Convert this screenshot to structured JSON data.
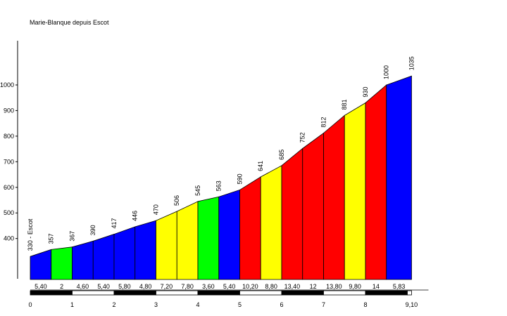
{
  "chart_data": {
    "type": "area",
    "title": "Marie-Blanque depuis Escot",
    "xlabel": "",
    "ylabel": "",
    "xlim": [
      0,
      9.1
    ],
    "ylim": [
      240,
      1100
    ],
    "x_ticks": [
      "0",
      "1",
      "2",
      "3",
      "4",
      "5",
      "6",
      "7",
      "8",
      "9,10"
    ],
    "y_ticks": [
      "400",
      "500",
      "600",
      "700",
      "800",
      "900",
      "1000"
    ],
    "start_label": "330 - Escot",
    "points": [
      {
        "x": 0,
        "alt": 330,
        "label": "330 - Escot"
      },
      {
        "x": 0.5,
        "alt": 357,
        "label": "357"
      },
      {
        "x": 1.0,
        "alt": 367,
        "label": "367"
      },
      {
        "x": 1.5,
        "alt": 390,
        "label": "390"
      },
      {
        "x": 2.0,
        "alt": 417,
        "label": "417"
      },
      {
        "x": 2.5,
        "alt": 446,
        "label": "446"
      },
      {
        "x": 3.0,
        "alt": 470,
        "label": "470"
      },
      {
        "x": 3.5,
        "alt": 506,
        "label": "506"
      },
      {
        "x": 4.0,
        "alt": 545,
        "label": "545"
      },
      {
        "x": 4.5,
        "alt": 563,
        "label": "563"
      },
      {
        "x": 5.0,
        "alt": 590,
        "label": "590"
      },
      {
        "x": 5.5,
        "alt": 641,
        "label": "641"
      },
      {
        "x": 6.0,
        "alt": 685,
        "label": "685"
      },
      {
        "x": 6.5,
        "alt": 752,
        "label": "752"
      },
      {
        "x": 7.0,
        "alt": 812,
        "label": "812"
      },
      {
        "x": 7.5,
        "alt": 881,
        "label": "881"
      },
      {
        "x": 8.0,
        "alt": 930,
        "label": "930"
      },
      {
        "x": 8.5,
        "alt": 1000,
        "label": "1000"
      },
      {
        "x": 9.1,
        "alt": 1035,
        "label": "1035"
      }
    ],
    "segments": [
      {
        "gradient": "5,40",
        "color": "#0000ff"
      },
      {
        "gradient": "2",
        "color": "#00ff00"
      },
      {
        "gradient": "4,60",
        "color": "#0000ff"
      },
      {
        "gradient": "5,40",
        "color": "#0000ff"
      },
      {
        "gradient": "5,80",
        "color": "#0000ff"
      },
      {
        "gradient": "4,80",
        "color": "#0000ff"
      },
      {
        "gradient": "7,20",
        "color": "#ffff00"
      },
      {
        "gradient": "7,80",
        "color": "#ffff00"
      },
      {
        "gradient": "3,60",
        "color": "#00ff00"
      },
      {
        "gradient": "5,40",
        "color": "#0000ff"
      },
      {
        "gradient": "10,20",
        "color": "#ff0000"
      },
      {
        "gradient": "8,80",
        "color": "#ffff00"
      },
      {
        "gradient": "13,40",
        "color": "#ff0000"
      },
      {
        "gradient": "12",
        "color": "#ff0000"
      },
      {
        "gradient": "13,80",
        "color": "#ff0000"
      },
      {
        "gradient": "9,80",
        "color": "#ffff00"
      },
      {
        "gradient": "14",
        "color": "#ff0000"
      },
      {
        "gradient": "5,83",
        "color": "#0000ff"
      }
    ],
    "grid": false,
    "legend": "none"
  }
}
